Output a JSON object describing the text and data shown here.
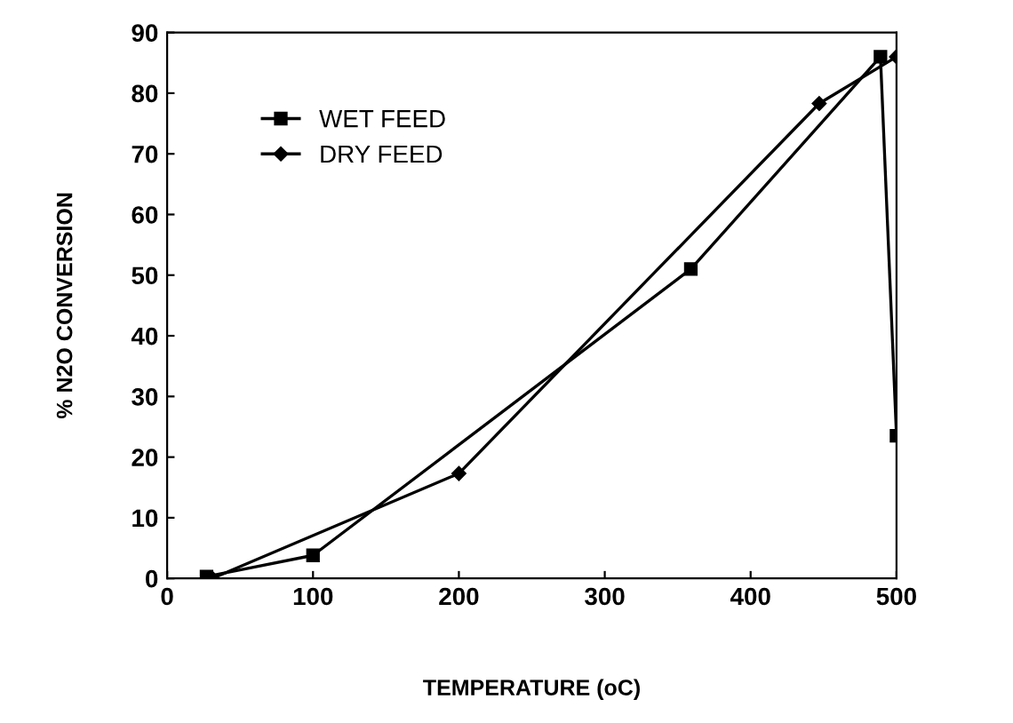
{
  "chart_data": {
    "type": "line",
    "xlabel": "TEMPERATURE (oC)",
    "ylabel": "% N2O CONVERSION",
    "xlim": [
      0,
      500
    ],
    "xticks": [
      0,
      100,
      200,
      300,
      400,
      500
    ],
    "ylim": [
      0,
      90
    ],
    "yticks": [
      0,
      10,
      20,
      30,
      40,
      50,
      60,
      70,
      80,
      90
    ],
    "grid": false,
    "legend": "top left",
    "series": [
      {
        "name": "WET FEED",
        "color": "#000000",
        "marker": "square",
        "x": [
          27,
          100,
          359,
          489,
          500
        ],
        "values": [
          0.3,
          3.8,
          51,
          86,
          23.5
        ]
      },
      {
        "name": "DRY FEED",
        "color": "#000000",
        "marker": "diamond",
        "x": [
          31,
          200,
          447,
          500
        ],
        "values": [
          0,
          17.3,
          78.3,
          86
        ]
      }
    ]
  }
}
